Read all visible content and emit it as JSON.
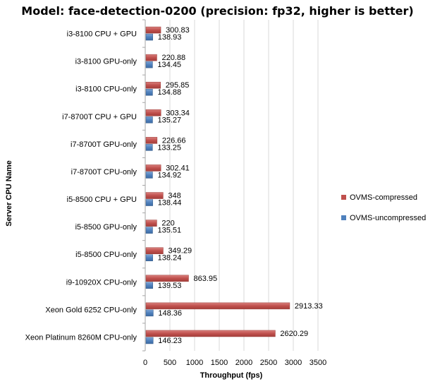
{
  "chart_data": {
    "type": "bar",
    "orientation": "horizontal",
    "title": "Model: face-detection-0200 (precision: fp32, higher is better)",
    "xlabel": "Throughput (fps)",
    "ylabel": "Server CPU Name",
    "xlim": [
      0,
      3500
    ],
    "xticks": [
      "0",
      "500",
      "1000",
      "1500",
      "2000",
      "2500",
      "3000",
      "3500"
    ],
    "grid": true,
    "legend_position": "right",
    "categories": [
      "i3-8100 CPU + GPU",
      "i3-8100 GPU-only",
      "i3-8100 CPU-only",
      "i7-8700T CPU + GPU",
      "i7-8700T GPU-only",
      "i7-8700T CPU-only",
      "i5-8500 CPU + GPU",
      "i5-8500 GPU-only",
      "i5-8500 CPU-only",
      "i9-10920X CPU-only",
      "Xeon Gold 6252 CPU-only",
      "Xeon Platinum 8260M CPU-only"
    ],
    "series": [
      {
        "name": "OVMS-compressed",
        "color": "#c0504d",
        "values": [
          300.83,
          220.88,
          295.85,
          303.34,
          226.66,
          302.41,
          348,
          220,
          349.29,
          863.95,
          2913.33,
          2620.29
        ],
        "labels": [
          "300.83",
          "220.88",
          "295.85",
          "303.34",
          "226.66",
          "302.41",
          "348",
          "220",
          "349.29",
          "863.95",
          "2913.33",
          "2620.29"
        ]
      },
      {
        "name": "OVMS-uncompressed",
        "color": "#4f81bd",
        "values": [
          138.93,
          134.45,
          134.88,
          135.27,
          133.25,
          134.92,
          138.44,
          135.51,
          138.24,
          139.53,
          148.36,
          146.23
        ],
        "labels": [
          "138.93",
          "134.45",
          "134.88",
          "135.27",
          "133.25",
          "134.92",
          "138.44",
          "135.51",
          "138.24",
          "139.53",
          "148.36",
          "146.23"
        ]
      }
    ]
  }
}
